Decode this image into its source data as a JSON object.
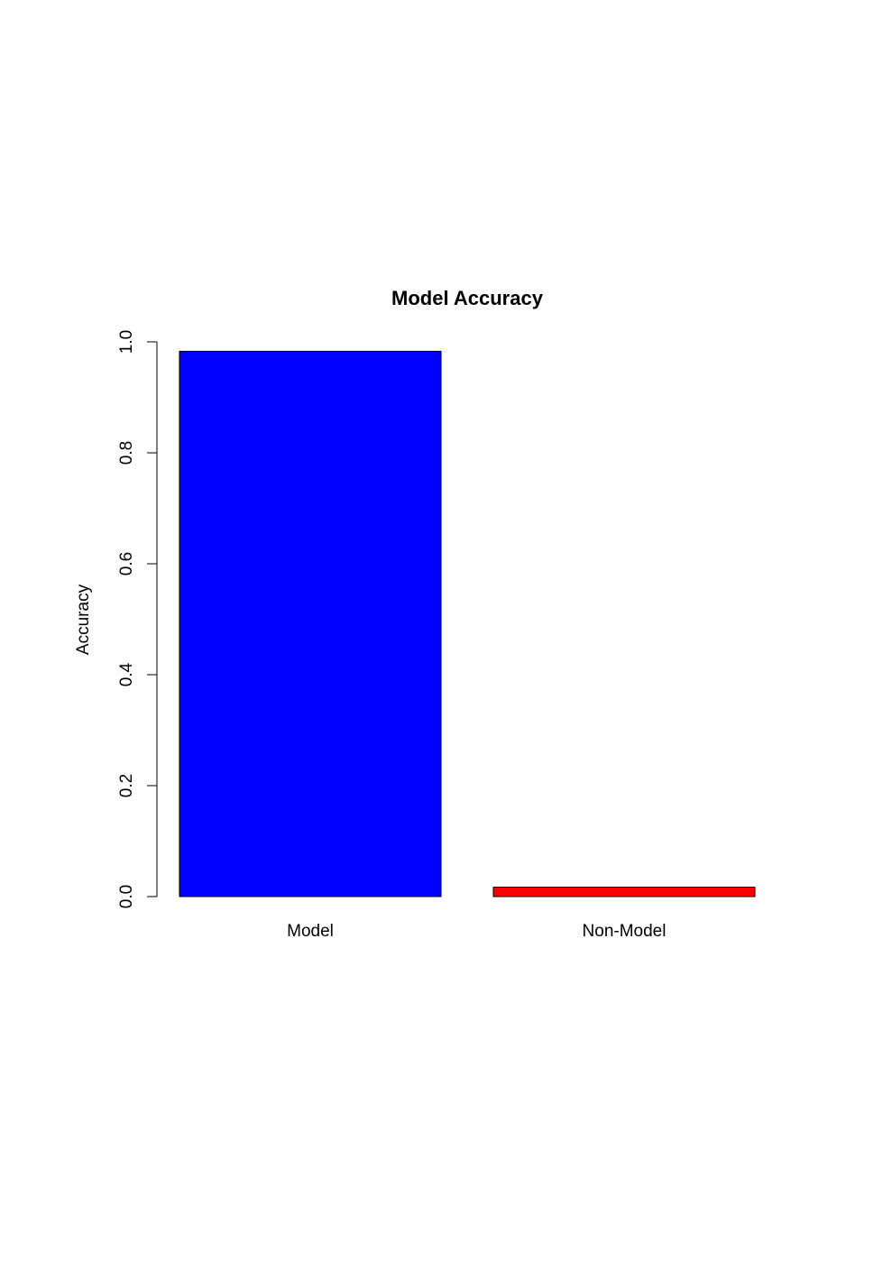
{
  "chart_data": {
    "type": "bar",
    "title": "Model Accuracy",
    "xlabel": "",
    "ylabel": "Accuracy",
    "categories": [
      "Model",
      "Non-Model"
    ],
    "values": [
      0.983,
      0.017
    ],
    "colors": [
      "#0000ff",
      "#ff0000"
    ],
    "ylim": [
      0,
      1
    ],
    "yticks": [
      0,
      0.2,
      0.4,
      0.6,
      0.8,
      1
    ],
    "ytick_labels": [
      "0.0",
      "0.2",
      "0.4",
      "0.6",
      "0.8",
      "1.0"
    ],
    "grid": false,
    "legend": "none"
  }
}
